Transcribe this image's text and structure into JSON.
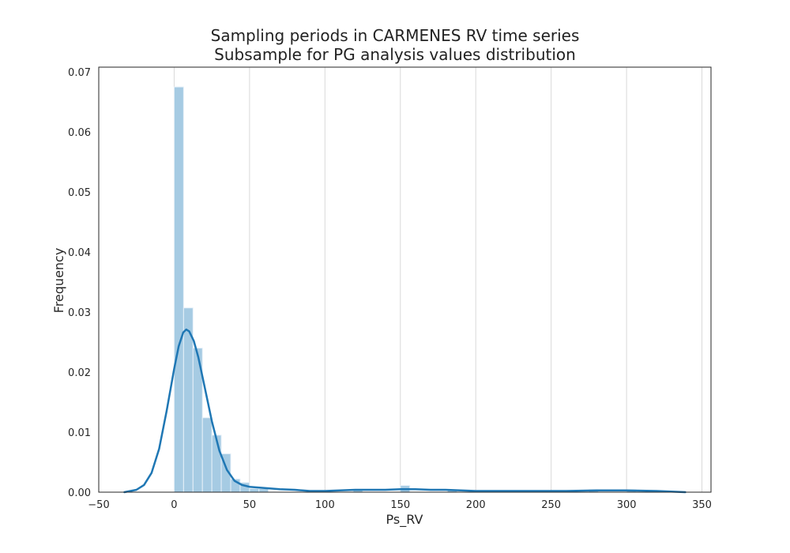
{
  "chart_data": {
    "type": "bar",
    "title": "Sampling periods in CARMENES RV time series",
    "subtitle": "Subsample for PG analysis values distribution",
    "xlabel": "Ps_RV",
    "ylabel": "Frequency",
    "xlim": [
      -50,
      356
    ],
    "ylim": [
      0,
      0.0708
    ],
    "xticks": [
      -50,
      0,
      50,
      100,
      150,
      200,
      250,
      300,
      350
    ],
    "xtick_labels": [
      "−50",
      "0",
      "50",
      "100",
      "150",
      "200",
      "250",
      "300",
      "350"
    ],
    "yticks": [
      0,
      0.01,
      0.02,
      0.03,
      0.04,
      0.05,
      0.06,
      0.07
    ],
    "ytick_labels": [
      "0.00",
      "0.01",
      "0.02",
      "0.03",
      "0.04",
      "0.05",
      "0.06",
      "0.07"
    ],
    "grid": "vertical",
    "histogram": {
      "series_type": "histogram",
      "color": "#a6cbe3",
      "edge_color": "#e6f0f8",
      "bin_width": 6.25,
      "bin_start": 0,
      "values": [
        0.0675,
        0.0307,
        0.024,
        0.0124,
        0.0095,
        0.0064,
        0.0022,
        0.0016,
        0.0006,
        0.0006,
        0.0,
        0.0,
        0.0,
        0.0,
        0.0,
        0.0,
        0.0,
        0.0,
        0.0,
        0.0004,
        0.0,
        0.0,
        0.0,
        0.0,
        0.0011,
        0.0,
        0.0,
        0.0,
        0.0,
        0.0004,
        0.0,
        0.0,
        0.0,
        0.0,
        0.0,
        0.0,
        0.0,
        0.0,
        0.0,
        0.0,
        0.0,
        0.0,
        0.0,
        0.0,
        0.0004,
        0.0,
        0.0,
        0.0,
        0.0004
      ]
    },
    "kde": {
      "series_type": "line",
      "color": "#1f77b4",
      "x": [
        -33,
        -25,
        -20,
        -15,
        -10,
        -5,
        0,
        3,
        6,
        8,
        10,
        13,
        16,
        20,
        25,
        30,
        35,
        40,
        45,
        50,
        60,
        70,
        80,
        90,
        100,
        110,
        120,
        130,
        140,
        150,
        155,
        160,
        170,
        180,
        190,
        200,
        220,
        240,
        260,
        280,
        300,
        320,
        339
      ],
      "y": [
        0.0,
        0.0004,
        0.0012,
        0.0032,
        0.0072,
        0.0135,
        0.0205,
        0.0243,
        0.0266,
        0.0271,
        0.0268,
        0.0252,
        0.0225,
        0.0178,
        0.0118,
        0.0069,
        0.0037,
        0.0019,
        0.0012,
        0.0009,
        0.0007,
        0.0005,
        0.0004,
        0.0002,
        0.0002,
        0.0003,
        0.0004,
        0.0004,
        0.0004,
        0.0005,
        0.0005,
        0.0005,
        0.0004,
        0.0004,
        0.0003,
        0.0002,
        0.0002,
        0.0002,
        0.0002,
        0.0003,
        0.0003,
        0.0002,
        0.0
      ]
    }
  }
}
